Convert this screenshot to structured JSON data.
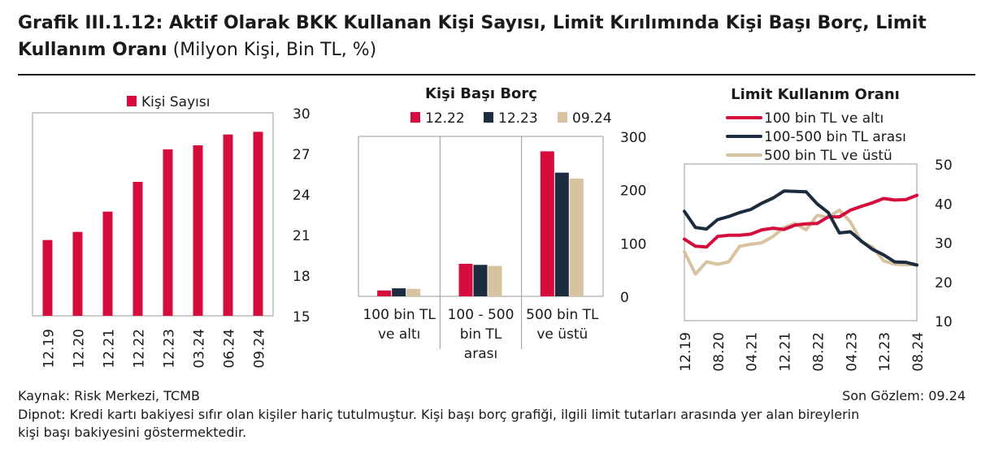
{
  "header": {
    "title_bold": "Grafik III.1.12: Aktif Olarak BKK Kullanan Kişi Sayısı, Limit Kırılımında Kişi Başı Borç, Limit Kullanım Oranı",
    "title_unit": "(Milyon Kişi, Bin TL, %)"
  },
  "colors": {
    "red": "#d50c3c",
    "navy": "#1d2b3f",
    "beige": "#d8c3a1",
    "axis": "#999999"
  },
  "chart_data": [
    {
      "type": "bar",
      "legend": [
        "Kişi Sayısı"
      ],
      "categories": [
        "12.19",
        "12.20",
        "12.21",
        "12.22",
        "12.23",
        "03.24",
        "06.24",
        "09.24"
      ],
      "series": [
        {
          "name": "Kişi Sayısı",
          "values": [
            20.6,
            21.2,
            22.7,
            24.9,
            27.3,
            27.6,
            28.4,
            28.6
          ]
        }
      ],
      "ylim": [
        15,
        30
      ],
      "yticks": [
        "15",
        "18",
        "21",
        "24",
        "27",
        "30"
      ]
    },
    {
      "type": "bar",
      "title": "Kişi Başı Borç",
      "categories": [
        "100 bin TL\nve altı",
        "100 - 500\nbin TL\narası",
        "500 bin TL\nve üstü"
      ],
      "series": [
        {
          "name": "12.22",
          "values": [
            11,
            61,
            272
          ]
        },
        {
          "name": "12.23",
          "values": [
            15,
            59,
            232
          ]
        },
        {
          "name": "09.24",
          "values": [
            14,
            57,
            221
          ]
        }
      ],
      "ylim": [
        0,
        300
      ],
      "yticks": [
        "0",
        "100",
        "200",
        "300"
      ]
    },
    {
      "type": "line",
      "title": "Limit Kullanım Oranı",
      "x_ticks": [
        "12.19",
        "08.20",
        "04.21",
        "12.21",
        "08.22",
        "04.23",
        "12.23",
        "08.24"
      ],
      "series": [
        {
          "name": "100 bin TL ve altı",
          "values": [
            30.8,
            29.0,
            28.8,
            31.5,
            31.8,
            31.8,
            32.1,
            33.2,
            33.6,
            33.3,
            34.4,
            34.7,
            34.8,
            36.5,
            36.5,
            38.2,
            39.2,
            40.1,
            41.2,
            40.8,
            40.9,
            42.0
          ]
        },
        {
          "name": "100-500 bin TL arası",
          "values": [
            37.9,
            33.8,
            33.4,
            35.8,
            36.6,
            37.6,
            38.4,
            40.0,
            41.3,
            43.1,
            43.0,
            42.9,
            39.8,
            37.6,
            32.4,
            32.7,
            30.3,
            28.2,
            26.8,
            25.0,
            24.9,
            24.2
          ]
        },
        {
          "name": "500 bin TL ve üstü",
          "values": [
            27.6,
            21.9,
            25.0,
            24.4,
            25.0,
            29.0,
            29.5,
            29.9,
            31.5,
            33.8,
            34.8,
            33.2,
            36.9,
            36.4,
            38.2,
            35.2,
            30.1,
            28.8,
            25.3,
            24.4,
            24.3,
            24.3
          ]
        }
      ],
      "ylim": [
        10,
        50
      ],
      "yticks": [
        "10",
        "20",
        "30",
        "40",
        "50"
      ]
    }
  ],
  "footer": {
    "source": "Kaynak: Risk Merkezi, TCMB",
    "last_obs": "Son Gözlem: 09.24",
    "note_line1": "Dipnot: Kredi kartı bakiyesi sıfır olan kişiler hariç tutulmuştur. Kişi başı borç grafiği, ilgili limit tutarları arasında yer alan bireylerin",
    "note_line2": "kişi başı bakiyesini göstermektedir."
  }
}
